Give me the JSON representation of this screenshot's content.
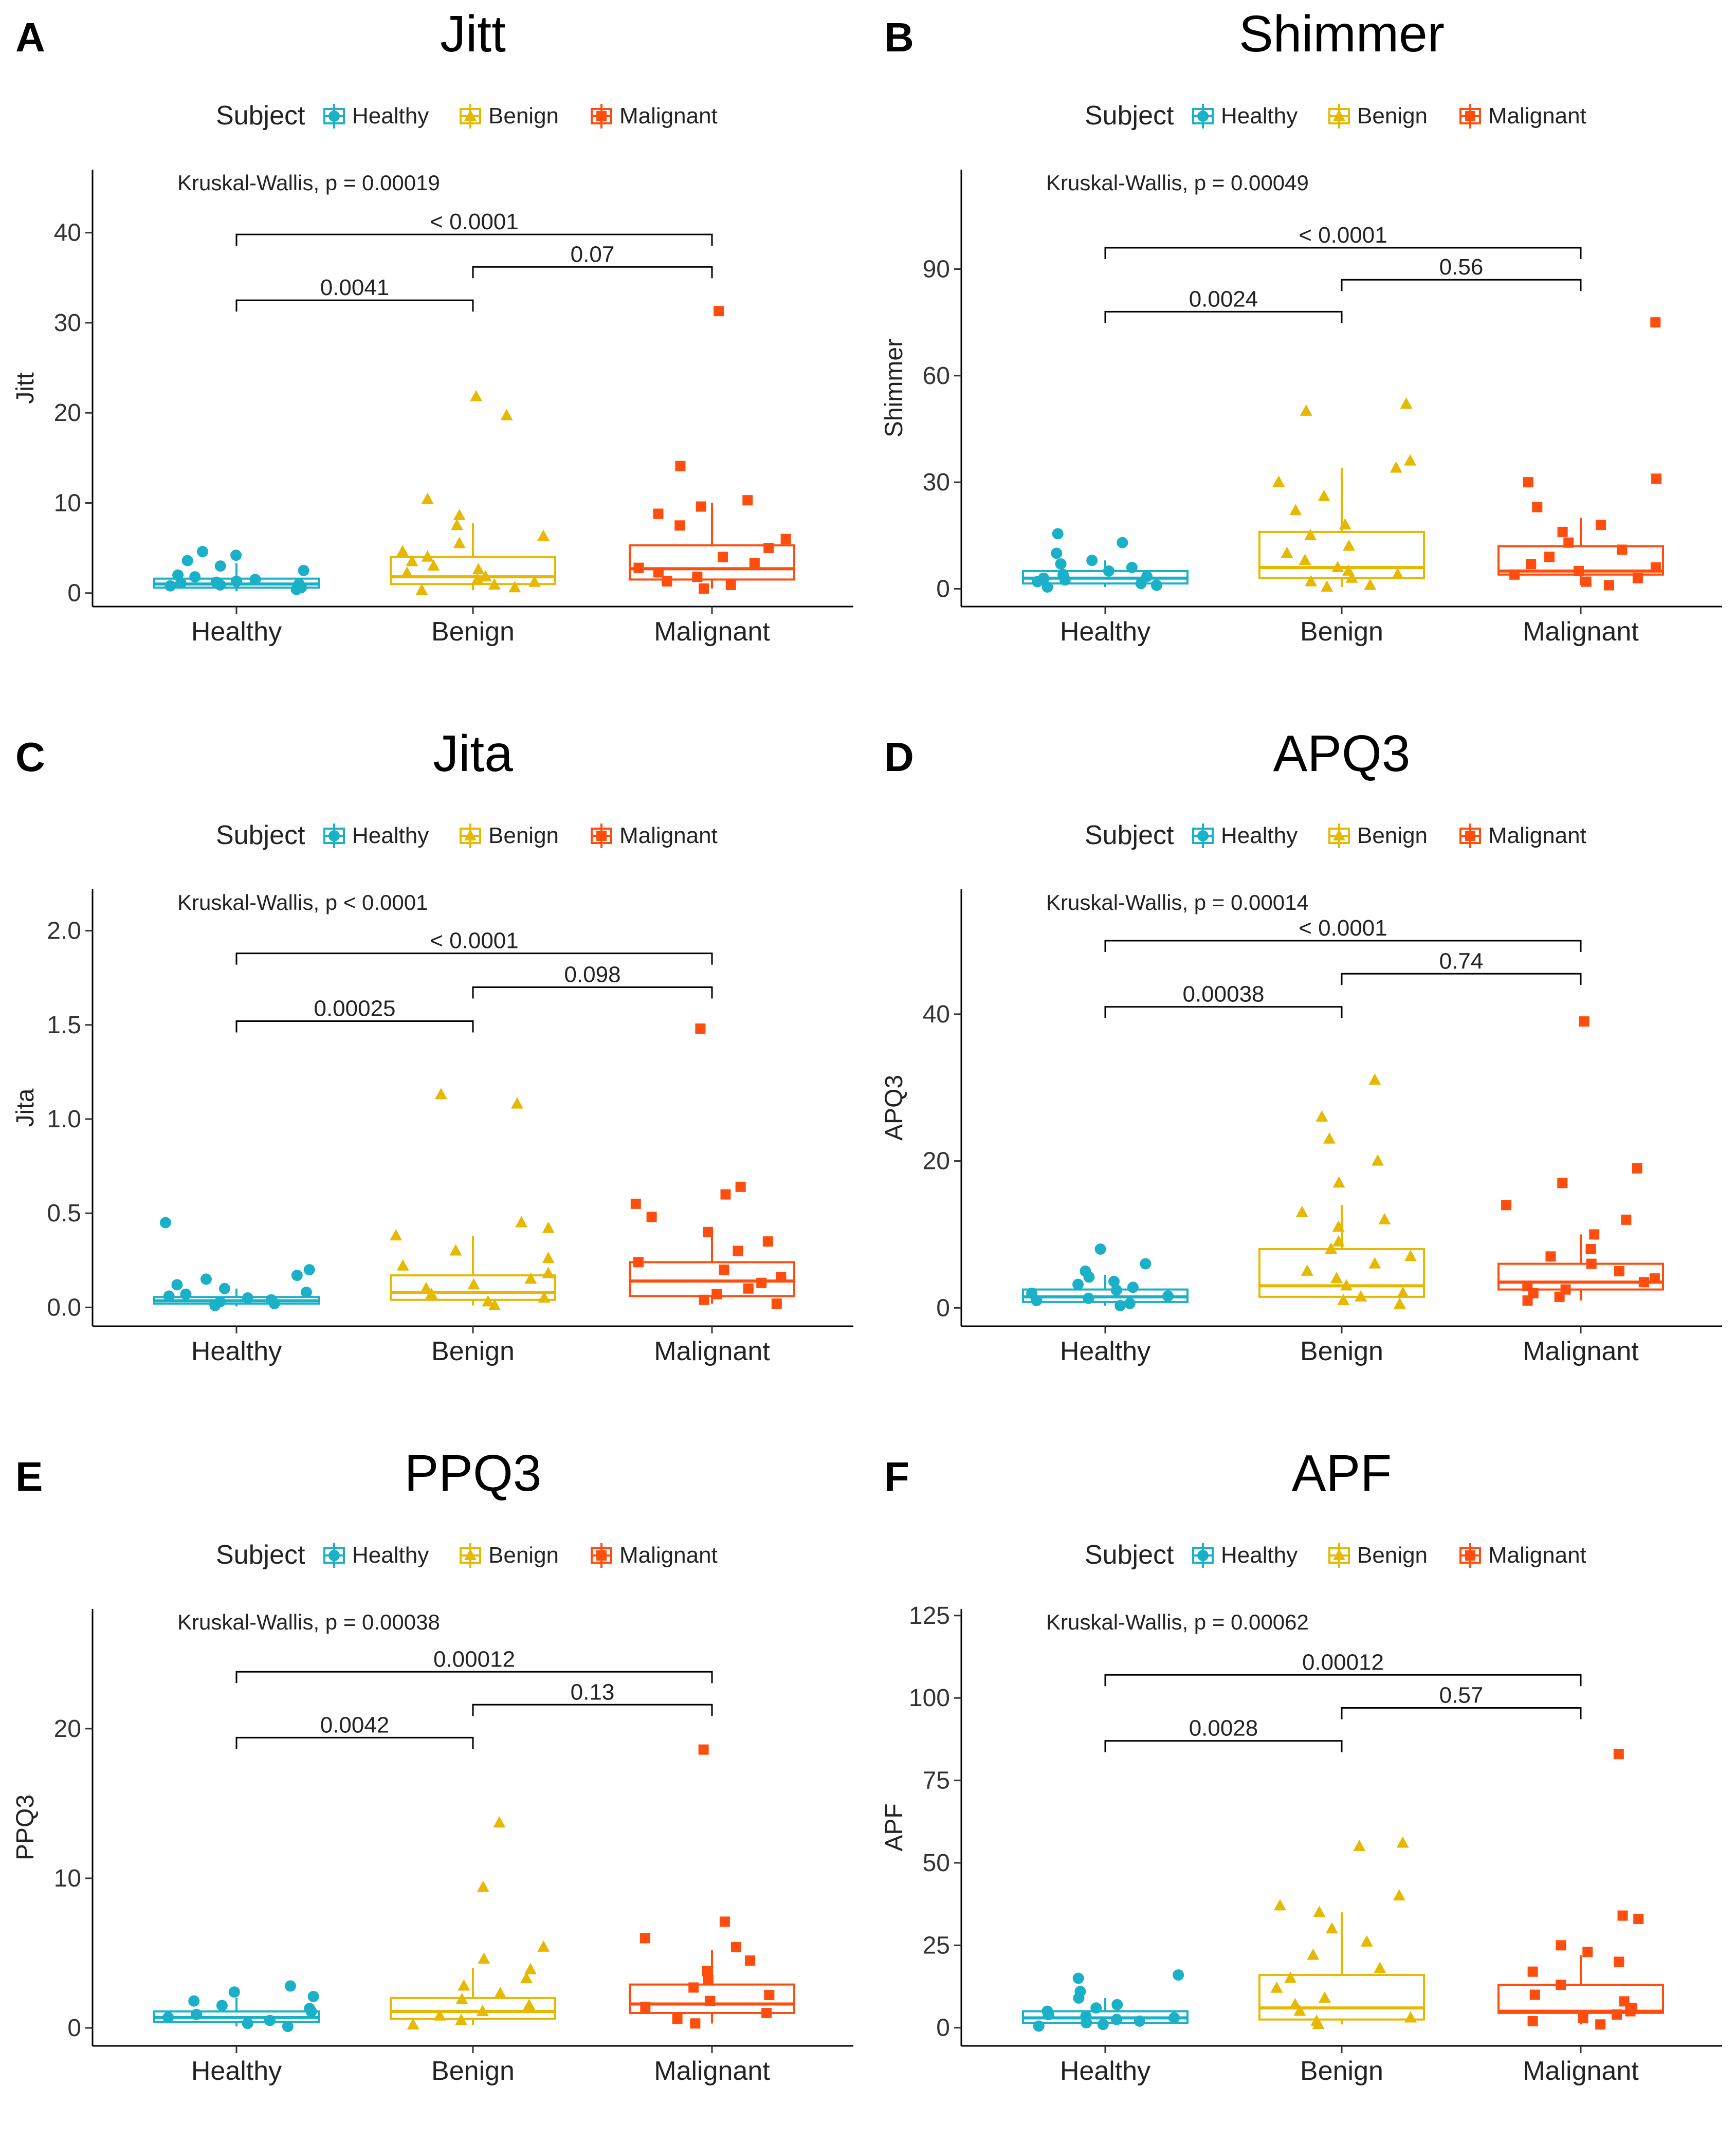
{
  "colors": {
    "Healthy": "#1ab0c8",
    "Benign": "#e6b800",
    "Malignant": "#ff4d0d"
  },
  "legend": {
    "title": "Subject",
    "items": [
      "Healthy",
      "Benign",
      "Malignant"
    ]
  },
  "chart_data": [
    {
      "type": "box",
      "letter": "A",
      "title": "Jitt",
      "ylabel": "Jitt",
      "categories": [
        "Healthy",
        "Benign",
        "Malignant"
      ],
      "ylim": [
        -1.5,
        47
      ],
      "yticks": [
        0,
        10,
        20,
        30,
        40
      ],
      "kruskal": "Kruskal-Wallis, p = 0.00019",
      "boxes": [
        {
          "min": 0.2,
          "q1": 0.6,
          "median": 1.0,
          "q3": 1.6,
          "max": 3.3
        },
        {
          "min": 0.3,
          "q1": 1.0,
          "median": 1.8,
          "q3": 4.0,
          "max": 7.8
        },
        {
          "min": 0.5,
          "q1": 1.5,
          "median": 2.7,
          "q3": 5.3,
          "max": 10.0
        }
      ],
      "points": [
        [
          0.4,
          0.6,
          0.8,
          0.9,
          1.0,
          1.1,
          1.2,
          1.3,
          1.5,
          1.8,
          2.0,
          2.5,
          3.0,
          3.6,
          4.2,
          4.6
        ],
        [
          0.3,
          0.6,
          0.9,
          1.2,
          1.5,
          1.8,
          2.2,
          2.6,
          3.0,
          3.5,
          4.0,
          4.6,
          5.5,
          6.3,
          7.5,
          8.6,
          10.4,
          19.7,
          21.8
        ],
        [
          0.5,
          0.9,
          1.3,
          1.8,
          2.3,
          2.8,
          3.3,
          4.0,
          5.0,
          6.0,
          7.5,
          8.8,
          9.6,
          10.3,
          14.1,
          31.3
        ]
      ],
      "comparisons": [
        {
          "from": 0,
          "to": 1,
          "label": "0.0041",
          "y": 32.5
        },
        {
          "from": 1,
          "to": 2,
          "label": "0.07",
          "y": 36.2
        },
        {
          "from": 0,
          "to": 2,
          "label": "< 0.0001",
          "y": 39.8
        }
      ]
    },
    {
      "type": "box",
      "letter": "B",
      "title": "Shimmer",
      "ylabel": "Shimmer",
      "categories": [
        "Healthy",
        "Benign",
        "Malignant"
      ],
      "ylim": [
        -5,
        118
      ],
      "yticks": [
        0,
        30,
        60,
        90
      ],
      "kruskal": "Kruskal-Wallis, p = 0.00049",
      "boxes": [
        {
          "min": 0.5,
          "q1": 1.5,
          "median": 3.0,
          "q3": 5.0,
          "max": 8.0
        },
        {
          "min": 0.5,
          "q1": 3.0,
          "median": 6.0,
          "q3": 16.0,
          "max": 34.0
        },
        {
          "min": 1.0,
          "q1": 4.0,
          "median": 5.0,
          "q3": 12.0,
          "max": 20.0
        }
      ],
      "points": [
        [
          0.5,
          1,
          1.5,
          2,
          2.5,
          3,
          3.5,
          4,
          5,
          6,
          7,
          8,
          10,
          13,
          15.5
        ],
        [
          0.5,
          1,
          2,
          3,
          4,
          5,
          6,
          8,
          10,
          12,
          15,
          18,
          22,
          26,
          30,
          34,
          36,
          50,
          52
        ],
        [
          1,
          2,
          3,
          4,
          5,
          6,
          7,
          9,
          11,
          13,
          16,
          18,
          23,
          30,
          31,
          75
        ]
      ],
      "comparisons": [
        {
          "from": 0,
          "to": 1,
          "label": "0.0024",
          "y": 78
        },
        {
          "from": 1,
          "to": 2,
          "label": "0.56",
          "y": 87
        },
        {
          "from": 0,
          "to": 2,
          "label": "< 0.0001",
          "y": 96
        }
      ]
    },
    {
      "type": "box",
      "letter": "C",
      "title": "Jita",
      "ylabel": "Jita",
      "categories": [
        "Healthy",
        "Benign",
        "Malignant"
      ],
      "ylim": [
        -0.1,
        2.22
      ],
      "yticks": [
        0.0,
        0.5,
        1.0,
        1.5,
        2.0
      ],
      "kruskal": "Kruskal-Wallis, p < 0.0001",
      "boxes": [
        {
          "min": 0.005,
          "q1": 0.02,
          "median": 0.035,
          "q3": 0.055,
          "max": 0.1
        },
        {
          "min": 0.01,
          "q1": 0.04,
          "median": 0.08,
          "q3": 0.17,
          "max": 0.38
        },
        {
          "min": 0.02,
          "q1": 0.06,
          "median": 0.14,
          "q3": 0.24,
          "max": 0.42
        }
      ],
      "points": [
        [
          0.01,
          0.02,
          0.03,
          0.04,
          0.05,
          0.06,
          0.07,
          0.08,
          0.1,
          0.12,
          0.15,
          0.17,
          0.2,
          0.45
        ],
        [
          0.01,
          0.03,
          0.05,
          0.07,
          0.1,
          0.12,
          0.15,
          0.18,
          0.22,
          0.26,
          0.3,
          0.38,
          0.42,
          0.45,
          1.08,
          1.13
        ],
        [
          0.02,
          0.04,
          0.07,
          0.1,
          0.13,
          0.16,
          0.2,
          0.24,
          0.3,
          0.35,
          0.4,
          0.48,
          0.55,
          0.6,
          0.64,
          1.48
        ]
      ],
      "comparisons": [
        {
          "from": 0,
          "to": 1,
          "label": "0.00025",
          "y": 1.52
        },
        {
          "from": 1,
          "to": 2,
          "label": "0.098",
          "y": 1.7
        },
        {
          "from": 0,
          "to": 2,
          "label": "< 0.0001",
          "y": 1.88
        }
      ]
    },
    {
      "type": "box",
      "letter": "D",
      "title": "APQ3",
      "ylabel": "APQ3",
      "categories": [
        "Healthy",
        "Benign",
        "Malignant"
      ],
      "ylim": [
        -2.5,
        57
      ],
      "yticks": [
        0,
        20,
        40
      ],
      "kruskal": "Kruskal-Wallis, p = 0.00014",
      "boxes": [
        {
          "min": 0.3,
          "q1": 0.8,
          "median": 1.5,
          "q3": 2.5,
          "max": 4.5
        },
        {
          "min": 0.5,
          "q1": 1.5,
          "median": 3.0,
          "q3": 8.0,
          "max": 14.0
        },
        {
          "min": 1.0,
          "q1": 2.5,
          "median": 3.5,
          "q3": 6.0,
          "max": 10.0
        }
      ],
      "points": [
        [
          0.3,
          0.6,
          1,
          1.3,
          1.6,
          2,
          2.4,
          2.8,
          3.2,
          3.6,
          4.2,
          5,
          6,
          8
        ],
        [
          0.5,
          1,
          1.5,
          2,
          3,
          4,
          5,
          6,
          7,
          8,
          9,
          11,
          12,
          13,
          17,
          20,
          23,
          26,
          31
        ],
        [
          1,
          1.5,
          2,
          2.5,
          3,
          3.5,
          4,
          5,
          6,
          7,
          8,
          10,
          12,
          14,
          17,
          19,
          39
        ]
      ],
      "comparisons": [
        {
          "from": 0,
          "to": 1,
          "label": "0.00038",
          "y": 41
        },
        {
          "from": 1,
          "to": 2,
          "label": "0.74",
          "y": 45.5
        },
        {
          "from": 0,
          "to": 2,
          "label": "< 0.0001",
          "y": 50
        }
      ]
    },
    {
      "type": "box",
      "letter": "E",
      "title": "PPQ3",
      "ylabel": "PPQ3",
      "categories": [
        "Healthy",
        "Benign",
        "Malignant"
      ],
      "ylim": [
        -1.2,
        28
      ],
      "yticks": [
        0,
        10,
        20
      ],
      "kruskal": "Kruskal-Wallis, p = 0.00038",
      "boxes": [
        {
          "min": 0.1,
          "q1": 0.4,
          "median": 0.7,
          "q3": 1.1,
          "max": 2.0
        },
        {
          "min": 0.2,
          "q1": 0.6,
          "median": 1.1,
          "q3": 2.0,
          "max": 4.0
        },
        {
          "min": 0.3,
          "q1": 1.0,
          "median": 1.6,
          "q3": 2.9,
          "max": 5.2
        }
      ],
      "points": [
        [
          0.1,
          0.3,
          0.5,
          0.7,
          0.9,
          1.1,
          1.3,
          1.5,
          1.8,
          2.1,
          2.4,
          2.8
        ],
        [
          0.2,
          0.5,
          0.8,
          1.1,
          1.5,
          1.9,
          2.3,
          2.8,
          3.3,
          3.9,
          4.6,
          5.4,
          9.4,
          13.7
        ],
        [
          0.3,
          0.6,
          1,
          1.4,
          1.8,
          2.2,
          2.7,
          3.2,
          3.8,
          4.5,
          5.4,
          6.0,
          7.1,
          18.6
        ]
      ],
      "comparisons": [
        {
          "from": 0,
          "to": 1,
          "label": "0.0042",
          "y": 19.4
        },
        {
          "from": 1,
          "to": 2,
          "label": "0.13",
          "y": 21.6
        },
        {
          "from": 0,
          "to": 2,
          "label": "0.00012",
          "y": 23.8
        }
      ]
    },
    {
      "type": "box",
      "letter": "F",
      "title": "APF",
      "ylabel": "APF",
      "categories": [
        "Healthy",
        "Benign",
        "Malignant"
      ],
      "ylim": [
        -5.5,
        127
      ],
      "yticks": [
        0,
        25,
        50,
        75,
        100,
        125
      ],
      "kruskal": "Kruskal-Wallis, p = 0.00062",
      "boxes": [
        {
          "min": 0.5,
          "q1": 1.5,
          "median": 3.0,
          "q3": 5.0,
          "max": 9.0
        },
        {
          "min": 1.0,
          "q1": 2.5,
          "median": 6.0,
          "q3": 16.0,
          "max": 35.0
        },
        {
          "min": 1.0,
          "q1": 4.5,
          "median": 5.0,
          "q3": 13.0,
          "max": 22.0
        }
      ],
      "points": [
        [
          0.5,
          1,
          1.5,
          2,
          2.5,
          3,
          3.5,
          4,
          5,
          6,
          7,
          9,
          11,
          15,
          16
        ],
        [
          1,
          2,
          3,
          5,
          7,
          9,
          12,
          15,
          18,
          22,
          26,
          30,
          35,
          37,
          40,
          55,
          56
        ],
        [
          1,
          2,
          3,
          4,
          5,
          6,
          8,
          10,
          13,
          17,
          20,
          23,
          25,
          33,
          34,
          83
        ]
      ],
      "comparisons": [
        {
          "from": 0,
          "to": 1,
          "label": "0.0028",
          "y": 87
        },
        {
          "from": 1,
          "to": 2,
          "label": "0.57",
          "y": 97
        },
        {
          "from": 0,
          "to": 2,
          "label": "0.00012",
          "y": 107
        }
      ]
    }
  ]
}
